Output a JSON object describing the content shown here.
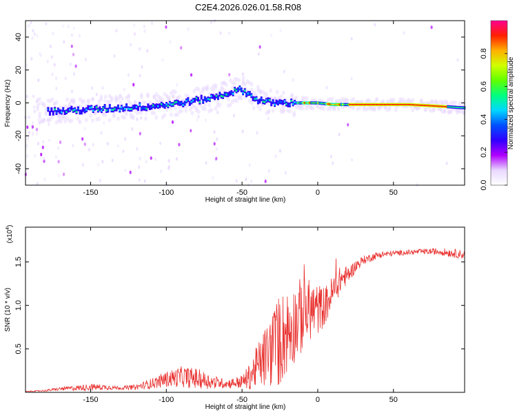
{
  "title": "C2E4.2026.026.01.58.R08",
  "colors": {
    "snr_line": "#e8302e",
    "axis": "#000000",
    "colormap": [
      "#ffffff",
      "#e8d8ff",
      "#b000ff",
      "#3000ff",
      "#0050ff",
      "#00d8ff",
      "#00ff80",
      "#60ff00",
      "#d0ff00",
      "#ffb000",
      "#ff2000",
      "#ff0090"
    ]
  },
  "chart_data": [
    {
      "type": "heatmap",
      "title": "",
      "xlabel": "Height of straight line (km)",
      "ylabel": "Frequency (Hz)",
      "xlim": [
        -193,
        97
      ],
      "ylim": [
        -50,
        50
      ],
      "x_ticks": [
        "-150",
        "-100",
        "-50",
        "0",
        "50"
      ],
      "x_tick_values": [
        -150,
        -100,
        -50,
        0,
        50
      ],
      "y_ticks": [
        "-40",
        "-20",
        "0",
        "20",
        "40"
      ],
      "y_tick_values": [
        -40,
        -20,
        0,
        20,
        40
      ],
      "ridge_frequency": {
        "x": [
          -190,
          -170,
          -150,
          -130,
          -110,
          -90,
          -70,
          -55,
          -50,
          -40,
          -30,
          -20,
          -15,
          -10,
          0,
          10,
          20,
          40,
          60,
          80,
          97
        ],
        "y": [
          -5,
          -5,
          -4,
          -3,
          -2,
          0,
          3,
          7,
          8,
          2,
          0,
          0,
          0,
          0,
          0,
          -1,
          -1,
          -1,
          -1,
          -2,
          -3
        ]
      },
      "colorbar": {
        "label": "Normalized spectral amplitude",
        "range": [
          0,
          1
        ],
        "ticks": [
          "0.0",
          "0.2",
          "0.4",
          "0.6",
          "0.8"
        ],
        "tick_values": [
          0.0,
          0.2,
          0.4,
          0.6,
          0.8
        ]
      }
    },
    {
      "type": "line",
      "title": "",
      "xlabel": "Height of straight line (km)",
      "ylabel": "SNR (10 * v/v)",
      "y_multiplier": "(x10",
      "y_multiplier_exp": "4",
      "y_multiplier_close": ")",
      "xlim": [
        -193,
        97
      ],
      "ylim": [
        0,
        1.9
      ],
      "x_ticks": [
        "-150",
        "-100",
        "-50",
        "0",
        "50"
      ],
      "x_tick_values": [
        -150,
        -100,
        -50,
        0,
        50
      ],
      "y_ticks": [
        "0.5",
        "1.0",
        "1.5"
      ],
      "y_tick_values": [
        0.5,
        1.0,
        1.5
      ],
      "series": [
        {
          "name": "SNR",
          "x": [
            -193,
            -180,
            -170,
            -160,
            -150,
            -140,
            -130,
            -120,
            -110,
            -100,
            -90,
            -80,
            -70,
            -60,
            -50,
            -45,
            -40,
            -35,
            -30,
            -25,
            -20,
            -15,
            -10,
            -5,
            0,
            5,
            10,
            15,
            20,
            25,
            30,
            40,
            50,
            60,
            70,
            80,
            90,
            97
          ],
          "values": [
            0.01,
            0.02,
            0.04,
            0.05,
            0.06,
            0.06,
            0.05,
            0.06,
            0.1,
            0.15,
            0.18,
            0.16,
            0.12,
            0.1,
            0.12,
            0.18,
            0.3,
            0.4,
            0.5,
            0.6,
            0.7,
            0.8,
            0.9,
            0.95,
            0.95,
            1.0,
            1.15,
            1.3,
            1.35,
            1.45,
            1.52,
            1.58,
            1.6,
            1.61,
            1.62,
            1.62,
            1.6,
            1.58
          ],
          "noise": [
            0.003,
            0.01,
            0.02,
            0.03,
            0.04,
            0.03,
            0.02,
            0.03,
            0.06,
            0.09,
            0.12,
            0.12,
            0.08,
            0.05,
            0.08,
            0.15,
            0.25,
            0.35,
            0.45,
            0.55,
            0.5,
            0.45,
            0.45,
            0.35,
            0.3,
            0.22,
            0.2,
            0.15,
            0.1,
            0.07,
            0.05,
            0.04,
            0.03,
            0.03,
            0.03,
            0.04,
            0.05,
            0.05
          ]
        }
      ]
    }
  ]
}
